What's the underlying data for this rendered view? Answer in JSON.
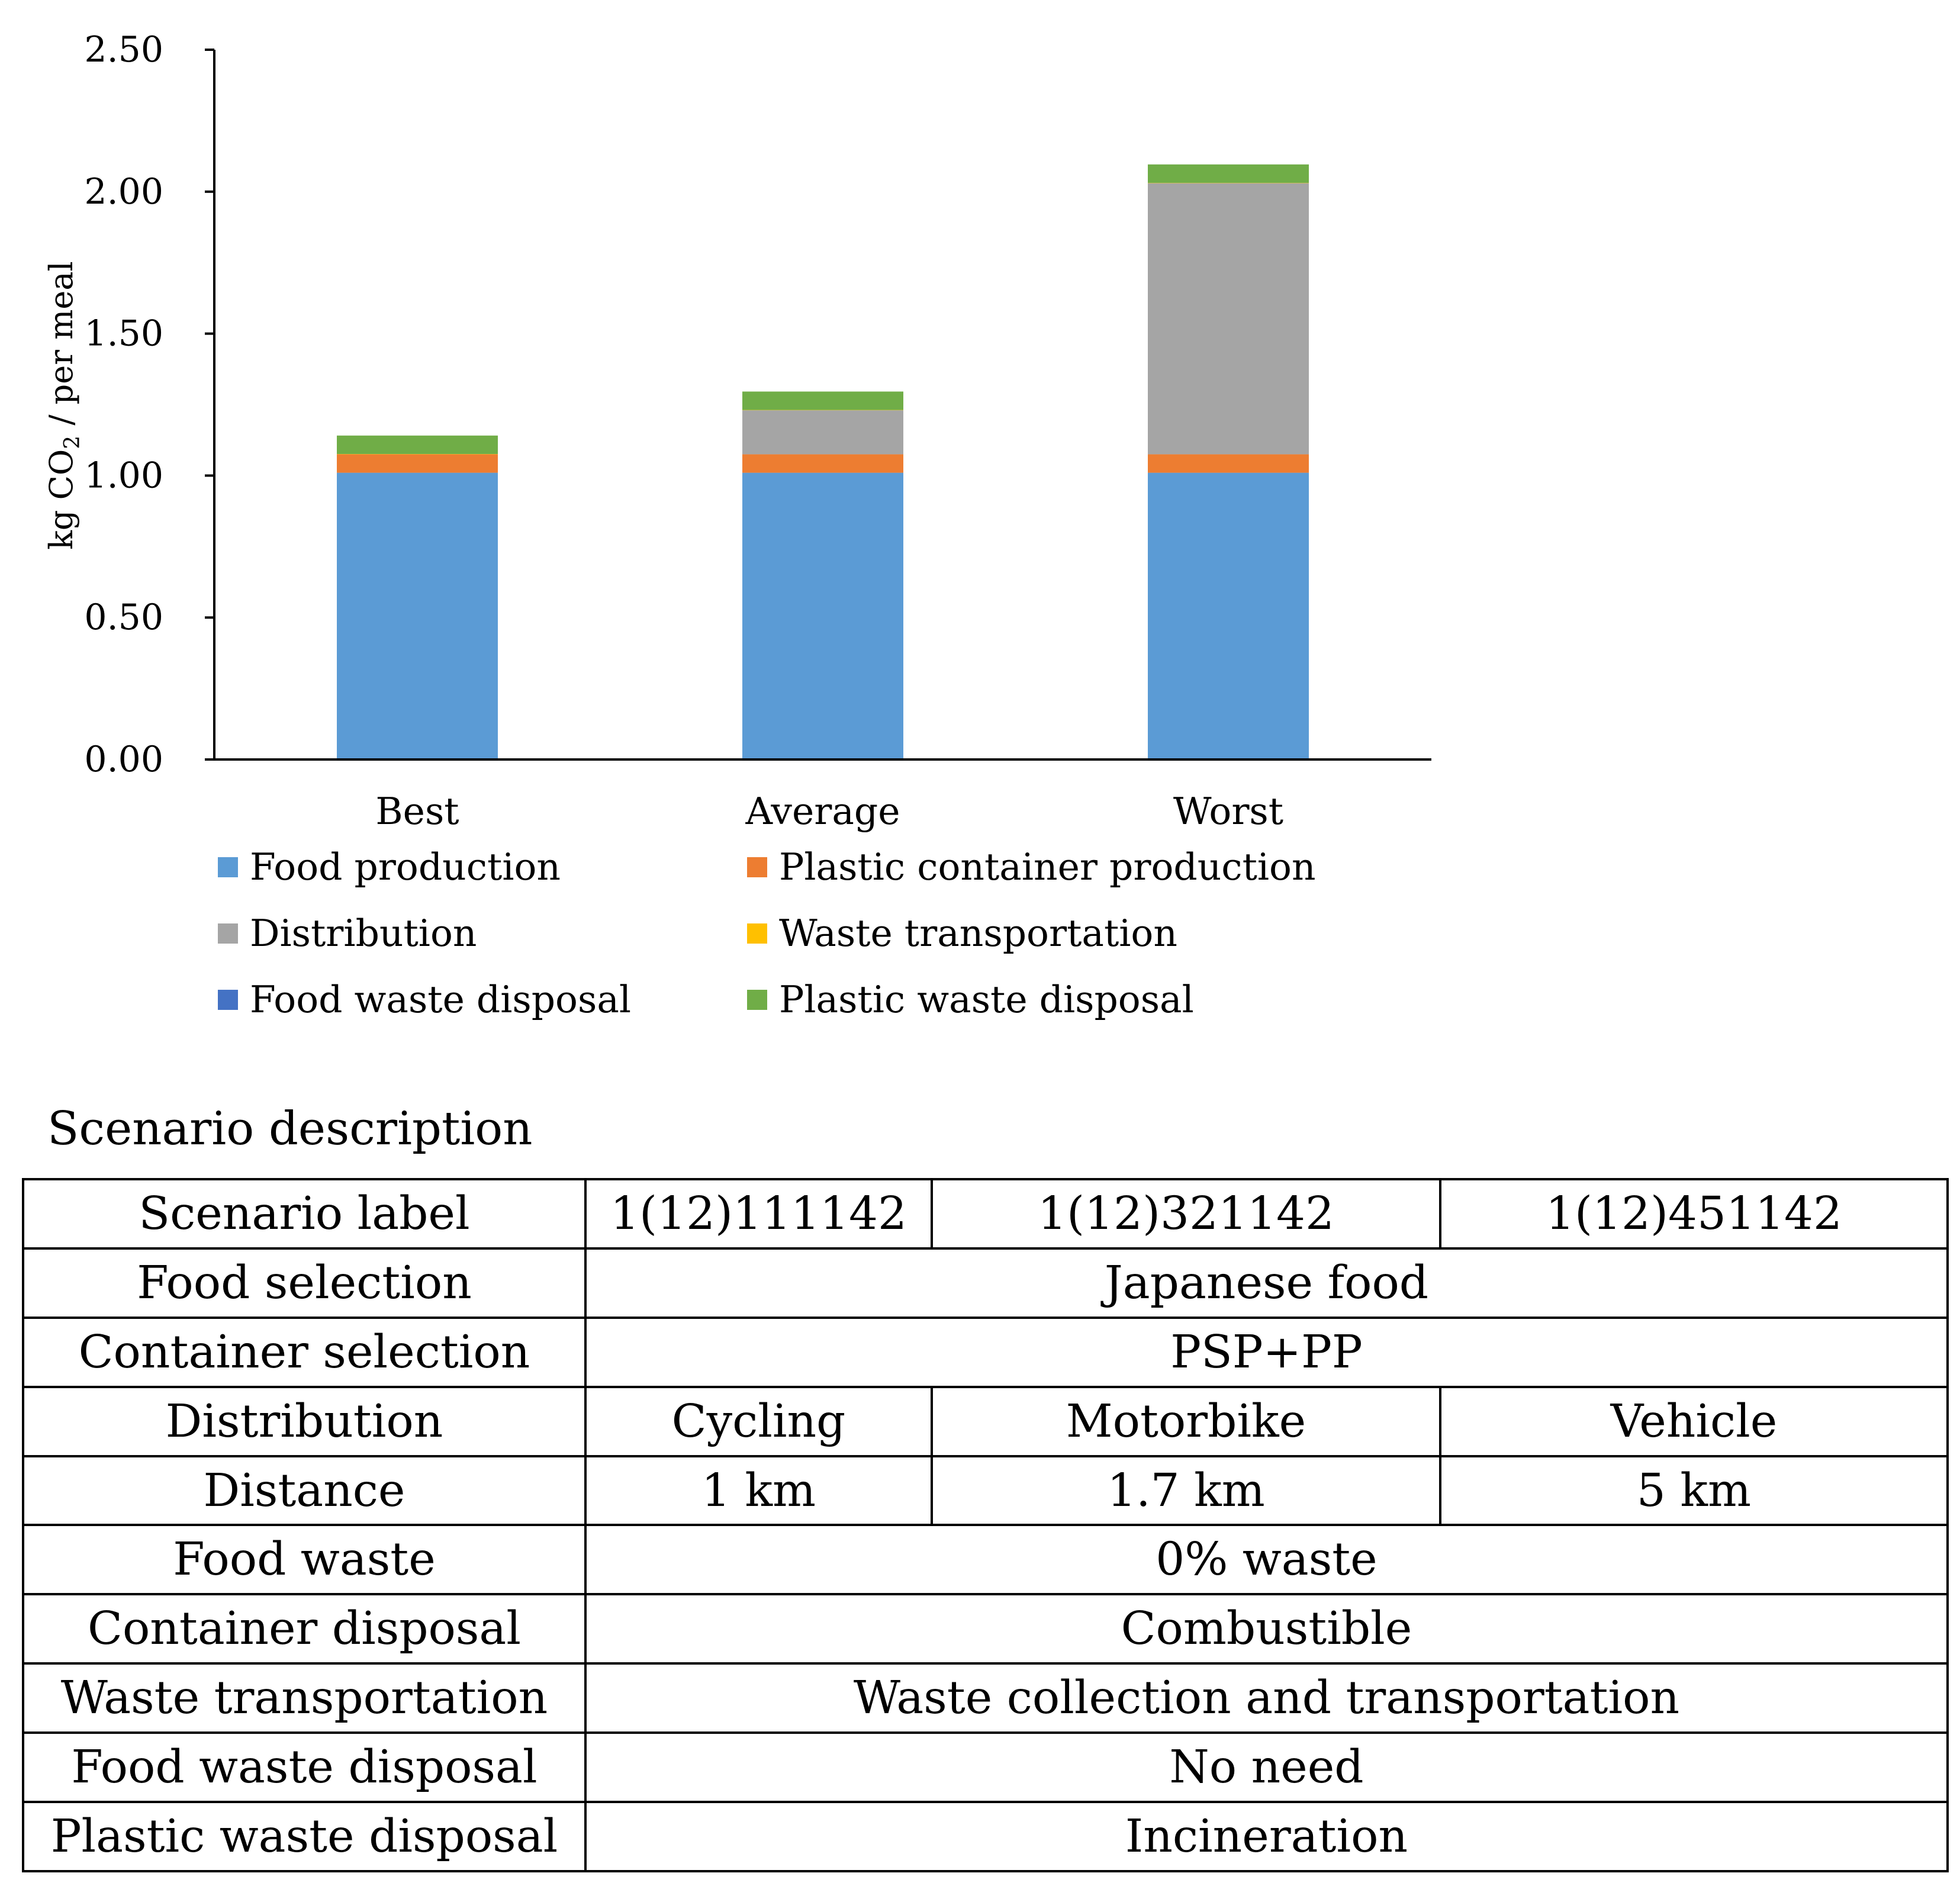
{
  "chart_data": {
    "type": "bar",
    "stacked": true,
    "categories": [
      "Best",
      "Average",
      "Worst"
    ],
    "series": [
      {
        "name": "Food production",
        "color": "#5B9BD5",
        "values": [
          1.01,
          1.01,
          1.01
        ]
      },
      {
        "name": "Plastic container production",
        "color": "#ED7D31",
        "values": [
          0.065,
          0.065,
          0.065
        ]
      },
      {
        "name": "Distribution",
        "color": "#A5A5A5",
        "values": [
          0.0,
          0.155,
          0.955
        ]
      },
      {
        "name": "Waste transportation",
        "color": "#FFC000",
        "values": [
          0.001,
          0.001,
          0.001
        ]
      },
      {
        "name": "Food waste disposal",
        "color": "#4472C4",
        "values": [
          0.0,
          0.0,
          0.0
        ]
      },
      {
        "name": "Plastic waste disposal",
        "color": "#70AD47",
        "values": [
          0.065,
          0.065,
          0.065
        ]
      }
    ],
    "ylabel": "kg CO2 / per meal",
    "ylim": [
      0,
      2.5
    ],
    "yticks": [
      "0.00",
      "0.50",
      "1.00",
      "1.50",
      "2.00",
      "2.50"
    ],
    "grid": false,
    "legend_position": "bottom"
  },
  "ylabel": {
    "prefix": "kg CO",
    "subscript": "2",
    "suffix": " / per meal"
  },
  "table": {
    "caption": "Scenario description",
    "rows": [
      {
        "label": "Scenario label",
        "cells": [
          "1(12)111142",
          "1(12)321142",
          "1(12)451142"
        ]
      },
      {
        "label": "Food selection",
        "cells": [
          "Japanese food"
        ]
      },
      {
        "label": "Container selection",
        "cells": [
          "PSP+PP"
        ]
      },
      {
        "label": "Distribution",
        "cells": [
          "Cycling",
          "Motorbike",
          "Vehicle"
        ]
      },
      {
        "label": "Distance",
        "cells": [
          "1 km",
          "1.7 km",
          "5 km"
        ]
      },
      {
        "label": "Food waste",
        "cells": [
          "0% waste"
        ]
      },
      {
        "label": "Container disposal",
        "cells": [
          "Combustible"
        ]
      },
      {
        "label": "Waste transportation",
        "cells": [
          "Waste collection and transportation"
        ]
      },
      {
        "label": "Food waste disposal",
        "cells": [
          "No need"
        ]
      },
      {
        "label": "Plastic waste disposal",
        "cells": [
          "Incineration"
        ]
      }
    ]
  }
}
